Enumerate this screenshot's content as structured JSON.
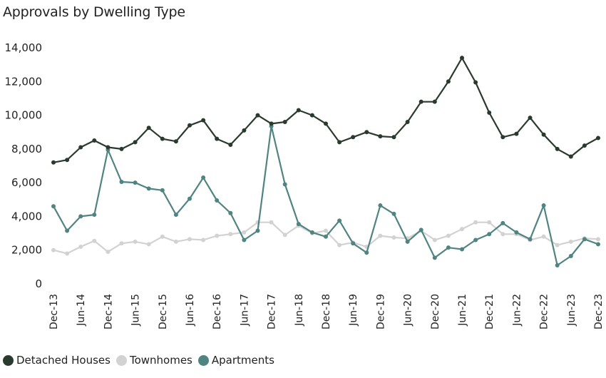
{
  "chart_data": {
    "type": "line",
    "title": "Approvals by Dwelling Type",
    "x_tick_labels": [
      "Dec-13",
      "Jun-14",
      "Dec-14",
      "Jun-15",
      "Dec-15",
      "Jun-16",
      "Dec-16",
      "Jun-17",
      "Dec-17",
      "Jun-18",
      "Dec-18",
      "Jun-19",
      "Dec-19",
      "Jun-20",
      "Dec-20",
      "Jun-21",
      "Dec-21",
      "Jun-22",
      "Dec-22",
      "Jun-23",
      "Dec-23"
    ],
    "y_tick_labels": [
      "0",
      "2,000",
      "4,000",
      "6,000",
      "8,000",
      "10,000",
      "12,000",
      "14,000"
    ],
    "ylim": [
      0,
      14000
    ],
    "xlabel": "",
    "ylabel": "",
    "grid": false,
    "legend_position": "bottom-left",
    "x_note": "Quarterly points from Dec-13 to Dec-23",
    "series": [
      {
        "name": "Detached Houses",
        "color": "#2b3a2e",
        "values": [
          7200,
          7350,
          8100,
          8500,
          8100,
          8000,
          8400,
          9250,
          8600,
          8450,
          9400,
          9700,
          8600,
          8250,
          9100,
          10000,
          9500,
          9600,
          10300,
          10000,
          9500,
          8400,
          8700,
          9000,
          8750,
          8700,
          9600,
          10800,
          10800,
          12000,
          13400,
          11950,
          10150,
          8700,
          8900,
          9850,
          8850,
          8000,
          7550,
          8200,
          8650
        ]
      },
      {
        "name": "Townhomes",
        "color": "#d2d2d2",
        "values": [
          2000,
          1800,
          2200,
          2550,
          1900,
          2400,
          2500,
          2350,
          2800,
          2500,
          2650,
          2600,
          2850,
          2950,
          3050,
          3650,
          3650,
          2900,
          3450,
          3000,
          3150,
          2300,
          2450,
          2200,
          2850,
          2750,
          2700,
          3150,
          2600,
          2850,
          3250,
          3650,
          3650,
          2950,
          2950,
          2600,
          2800,
          2300,
          2500,
          2700,
          2650
        ]
      },
      {
        "name": "Apartments",
        "color": "#4f8480",
        "values": [
          4600,
          3150,
          4000,
          4100,
          7950,
          6050,
          6000,
          5650,
          5550,
          4100,
          5050,
          6300,
          4950,
          4200,
          2600,
          3150,
          9350,
          5900,
          3550,
          3050,
          2800,
          3750,
          2400,
          1850,
          4650,
          4150,
          2500,
          3200,
          1550,
          2150,
          2050,
          2600,
          2950,
          3600,
          3050,
          2650,
          4650,
          1100,
          1650,
          2650,
          2350
        ]
      }
    ]
  }
}
